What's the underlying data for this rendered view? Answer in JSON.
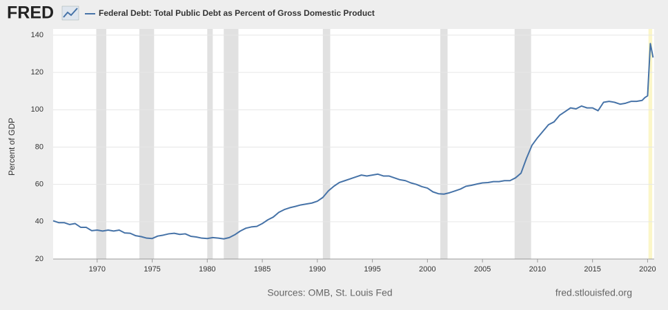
{
  "chart_data": {
    "type": "line",
    "logo": "FRED",
    "y_label": "Percent of GDP",
    "source": "Sources: OMB, St. Louis Fed",
    "url": "fred.stlouisfed.org",
    "xlim": [
      1966,
      2020.6
    ],
    "ylim": [
      20,
      140
    ],
    "xticks": [
      1970,
      1975,
      1980,
      1985,
      1990,
      1995,
      2000,
      2005,
      2010,
      2015,
      2020
    ],
    "yticks": [
      20,
      40,
      60,
      80,
      100,
      120,
      140
    ],
    "recessions": [
      [
        1969.92,
        1970.83
      ],
      [
        1973.83,
        1975.17
      ],
      [
        1980.0,
        1980.5
      ],
      [
        1981.5,
        1982.83
      ],
      [
        1990.5,
        1991.17
      ],
      [
        2001.17,
        2001.83
      ],
      [
        2007.92,
        2009.42
      ]
    ],
    "recession_color": "#e1e1e1",
    "highlights": [
      [
        2020.08,
        2020.42
      ]
    ],
    "highlight_color": "#fbf6c8",
    "series": [
      {
        "name": "Federal Debt: Total Public Debt as Percent of Gross Domestic Product",
        "color": "#4572a7",
        "x": [
          1966.0,
          1966.5,
          1967.0,
          1967.5,
          1968.0,
          1968.5,
          1969.0,
          1969.5,
          1970.0,
          1970.5,
          1971.0,
          1971.5,
          1972.0,
          1972.5,
          1973.0,
          1973.5,
          1974.0,
          1974.5,
          1975.0,
          1975.5,
          1976.0,
          1976.5,
          1977.0,
          1977.5,
          1978.0,
          1978.5,
          1979.0,
          1979.5,
          1980.0,
          1980.5,
          1981.0,
          1981.5,
          1982.0,
          1982.5,
          1983.0,
          1983.5,
          1984.0,
          1984.5,
          1985.0,
          1985.5,
          1986.0,
          1986.5,
          1987.0,
          1987.5,
          1988.0,
          1988.5,
          1989.0,
          1989.5,
          1990.0,
          1990.5,
          1991.0,
          1991.5,
          1992.0,
          1992.5,
          1993.0,
          1993.5,
          1994.0,
          1994.5,
          1995.0,
          1995.5,
          1996.0,
          1996.5,
          1997.0,
          1997.5,
          1998.0,
          1998.5,
          1999.0,
          1999.5,
          2000.0,
          2000.5,
          2001.0,
          2001.5,
          2002.0,
          2002.5,
          2003.0,
          2003.5,
          2004.0,
          2004.5,
          2005.0,
          2005.5,
          2006.0,
          2006.5,
          2007.0,
          2007.5,
          2008.0,
          2008.5,
          2009.0,
          2009.5,
          2010.0,
          2010.5,
          2011.0,
          2011.5,
          2012.0,
          2012.5,
          2013.0,
          2013.5,
          2014.0,
          2014.5,
          2015.0,
          2015.5,
          2016.0,
          2016.5,
          2017.0,
          2017.5,
          2018.0,
          2018.5,
          2019.0,
          2019.5,
          2019.75,
          2020.0,
          2020.25,
          2020.5
        ],
        "values": [
          40.5,
          39.5,
          39.5,
          38.5,
          39,
          37,
          37,
          35.2,
          35.5,
          35,
          35.5,
          35,
          35.5,
          34,
          33.8,
          32.5,
          32,
          31.2,
          31,
          32.3,
          32.8,
          33.5,
          33.8,
          33.2,
          33.5,
          32.2,
          31.8,
          31.2,
          31,
          31.5,
          31.2,
          30.8,
          31.5,
          33,
          35,
          36.5,
          37.2,
          37.5,
          39,
          41,
          42.5,
          45,
          46.5,
          47.5,
          48.2,
          49,
          49.5,
          50,
          51,
          53,
          56.5,
          59,
          61,
          62,
          63,
          64,
          65,
          64.5,
          65,
          65.5,
          64.5,
          64.5,
          63.5,
          62.5,
          62,
          60.8,
          60,
          58.8,
          58,
          56,
          55,
          54.8,
          55.5,
          56.5,
          57.5,
          59,
          59.5,
          60.2,
          60.8,
          61,
          61.5,
          61.5,
          62,
          62,
          63.5,
          66,
          74,
          81,
          85,
          88.5,
          92,
          93.5,
          97,
          99,
          101,
          100.5,
          102,
          101,
          101,
          99.5,
          104,
          104.5,
          104,
          103,
          103.5,
          104.5,
          104.5,
          105,
          106.5,
          107.5,
          135.5,
          128
        ]
      }
    ]
  }
}
